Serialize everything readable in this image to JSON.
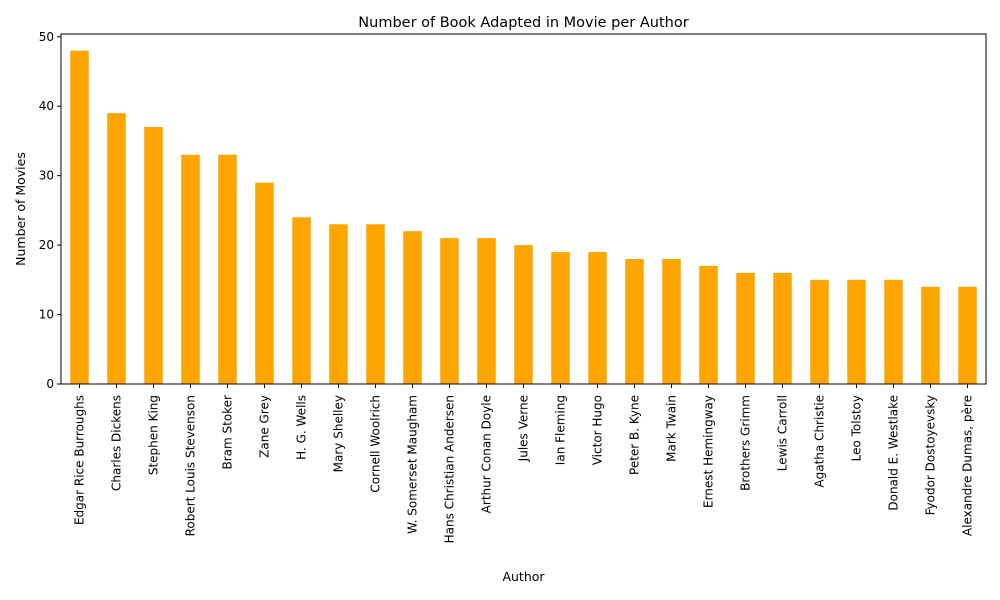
{
  "chart_data": {
    "type": "bar",
    "title": "Number of Book Adapted in Movie per Author",
    "xlabel": "Author",
    "ylabel": "Number of Movies",
    "ylim": [
      0,
      50.4
    ],
    "yticks": [
      0,
      10,
      20,
      30,
      40,
      50
    ],
    "grid": false,
    "legend": "none",
    "bar_color": "#FFA500",
    "categories": [
      "Edgar Rice Burroughs",
      "Charles Dickens",
      "Stephen King",
      "Robert Louis Stevenson",
      "Bram Stoker",
      "Zane Grey",
      "H. G. Wells",
      "Mary Shelley",
      "Cornell Woolrich",
      "W. Somerset Maugham",
      "Hans Christian Andersen",
      "Arthur Conan Doyle",
      "Jules Verne",
      "Ian Fleming",
      "Victor Hugo",
      "Peter B. Kyne",
      "Mark Twain",
      "Ernest Hemingway",
      "Brothers Grimm",
      "Lewis Carroll",
      "Agatha Christie",
      "Leo Tolstoy",
      "Donald E. Westlake",
      "Fyodor Dostoyevsky",
      "Alexandre Dumas, père"
    ],
    "values": [
      48,
      39,
      37,
      33,
      33,
      29,
      24,
      23,
      23,
      22,
      21,
      21,
      20,
      19,
      19,
      18,
      18,
      17,
      16,
      16,
      15,
      15,
      15,
      14,
      14
    ]
  }
}
